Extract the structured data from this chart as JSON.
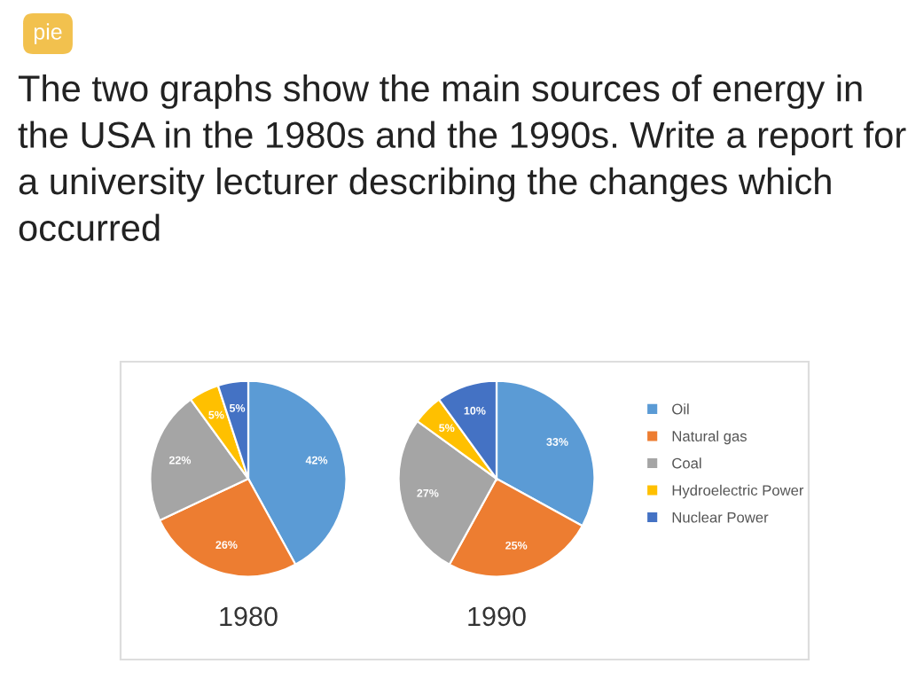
{
  "chart_data": [
    {
      "type": "pie",
      "title": "The two graphs show the main sources of energy in the USA in the 1980s and the 1990s. Write a report for a university lecturer describing the changes which occurred",
      "annotations": [
        "pie"
      ],
      "xlabel": "1980",
      "categories": [
        "Oil",
        "Natural gas",
        "Coal",
        "Hydroelectric Power",
        "Nuclear Power"
      ],
      "values": [
        42,
        26,
        22,
        5,
        5
      ],
      "value_labels": [
        "42%",
        "26%",
        "22%",
        "5%",
        "5%"
      ],
      "colors": [
        "#5b9bd5",
        "#ed7d31",
        "#a5a5a5",
        "#ffc000",
        "#4472c4"
      ],
      "legend": "right"
    },
    {
      "type": "pie",
      "xlabel": "1990",
      "categories": [
        null,
        null,
        null,
        null,
        null
      ],
      "values": [
        33,
        25,
        27,
        5,
        10
      ],
      "value_labels": [
        "33%",
        "25%",
        "27%",
        "5%",
        "10%"
      ],
      "colors": [
        "#5b9bd5",
        "#ed7d31",
        "#a5a5a5",
        "#ffc000",
        "#4472c4"
      ]
    }
  ]
}
